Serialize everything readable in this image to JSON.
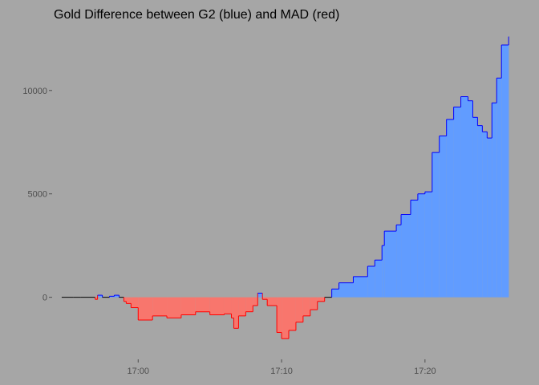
{
  "chart_data": {
    "type": "area",
    "title": "Gold Difference between G2 (blue) and MAD (red)",
    "xlabel": "",
    "ylabel": "",
    "x_ticks": [
      "17:00",
      "17:10",
      "17:20"
    ],
    "y_ticks": [
      0,
      5000,
      10000
    ],
    "xlim": [
      "16:54",
      "17:27"
    ],
    "ylim": [
      -3000,
      12900
    ],
    "grid": false,
    "legend": "none",
    "colors": {
      "background": "#a6a6a6",
      "positive_fill": "#619cff",
      "negative_fill": "#f8766d",
      "positive_line": "#0000ff",
      "negative_line": "#ff0000",
      "neutral_line": "#000000",
      "tick_label": "#4d4d4d",
      "tick_mark": "#4d4d4d"
    },
    "series": [
      {
        "x": [
          "16:55:30",
          "16:56:00",
          "16:57:00",
          "16:57:10",
          "16:57:30",
          "16:58:00",
          "16:58:20",
          "16:58:40",
          "16:59:00",
          "16:59:10",
          "16:59:30",
          "17:00:00",
          "17:01:00",
          "17:02:00",
          "17:03:00",
          "17:04:00",
          "17:05:00",
          "17:06:00",
          "17:06:30",
          "17:06:40",
          "17:07:00",
          "17:07:30",
          "17:08:00",
          "17:08:20",
          "17:08:40",
          "17:09:00",
          "17:09:40",
          "17:10:00",
          "17:10:30",
          "17:11:00",
          "17:11:30",
          "17:12:00",
          "17:12:30",
          "17:13:00",
          "17:13:30",
          "17:14:00",
          "17:15:00",
          "17:16:00",
          "17:16:30",
          "17:17:00",
          "17:17:10",
          "17:18:00",
          "17:18:20",
          "17:19:00",
          "17:19:30",
          "17:20:00",
          "17:20:30",
          "17:21:00",
          "17:21:30",
          "17:22:00",
          "17:22:30",
          "17:23:00",
          "17:23:20",
          "17:23:40",
          "17:24:00",
          "17:24:20",
          "17:24:40",
          "17:25:00",
          "17:25:20",
          "17:25:50"
        ],
        "values": [
          0,
          0,
          -100,
          100,
          0,
          50,
          100,
          0,
          -200,
          -300,
          -500,
          -1100,
          -900,
          -1000,
          -850,
          -700,
          -850,
          -800,
          -1000,
          -1500,
          -900,
          -700,
          -400,
          200,
          -100,
          -400,
          -1700,
          -2000,
          -1600,
          -1200,
          -900,
          -600,
          -200,
          0,
          400,
          700,
          1000,
          1500,
          1800,
          2500,
          3200,
          3500,
          4000,
          4700,
          5000,
          5100,
          7000,
          7800,
          8600,
          9200,
          9700,
          9500,
          8700,
          8300,
          8000,
          7700,
          9400,
          10600,
          12200,
          12600
        ]
      }
    ]
  }
}
